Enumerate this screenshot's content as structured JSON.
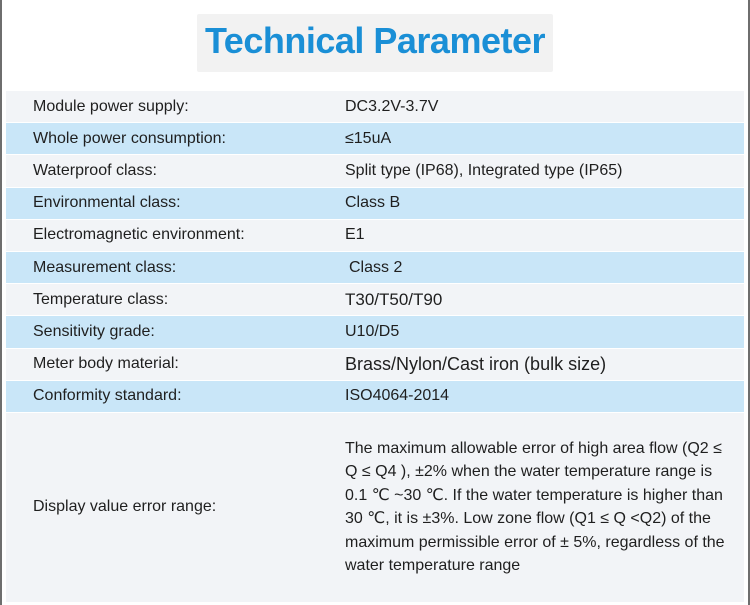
{
  "title": "Technical Parameter",
  "rows": [
    {
      "label": "Module power supply:",
      "value": "DC3.2V-3.7V"
    },
    {
      "label": "Whole power consumption:",
      "value": "≤15uA"
    },
    {
      "label": "Waterproof class:",
      "value": "Split type (IP68), Integrated type (IP65)"
    },
    {
      "label": "Environmental class:",
      "value": "Class B"
    },
    {
      "label": "Electromagnetic environment:",
      "value": "E1"
    },
    {
      "label": "Measurement class:",
      "value": "Class 2"
    },
    {
      "label": "Temperature class:",
      "value": "T30/T50/T90"
    },
    {
      "label": "Sensitivity grade:",
      "value": "U10/D5"
    },
    {
      "label": "Meter body material:",
      "value": "Brass/Nylon/Cast iron (bulk size)"
    },
    {
      "label": "Conformity standard:",
      "value": "ISO4064-2014"
    },
    {
      "label": "Display value error range:",
      "value": "The maximum allowable error of high area flow (Q2 ≤ Q ≤ Q4 ), ±2% when the water temperature range is 0.1 ℃ ~30 ℃. If the water temperature is higher than 30 ℃, it is ±3%. Low zone flow (Q1 ≤ Q <Q2) of the maximum permissible error of ± 5%, regardless of the water temperature range"
    }
  ],
  "colors": {
    "title": "#1a8fd6",
    "row_light": "#f2f4f7",
    "row_blue": "#c9e6f8"
  }
}
